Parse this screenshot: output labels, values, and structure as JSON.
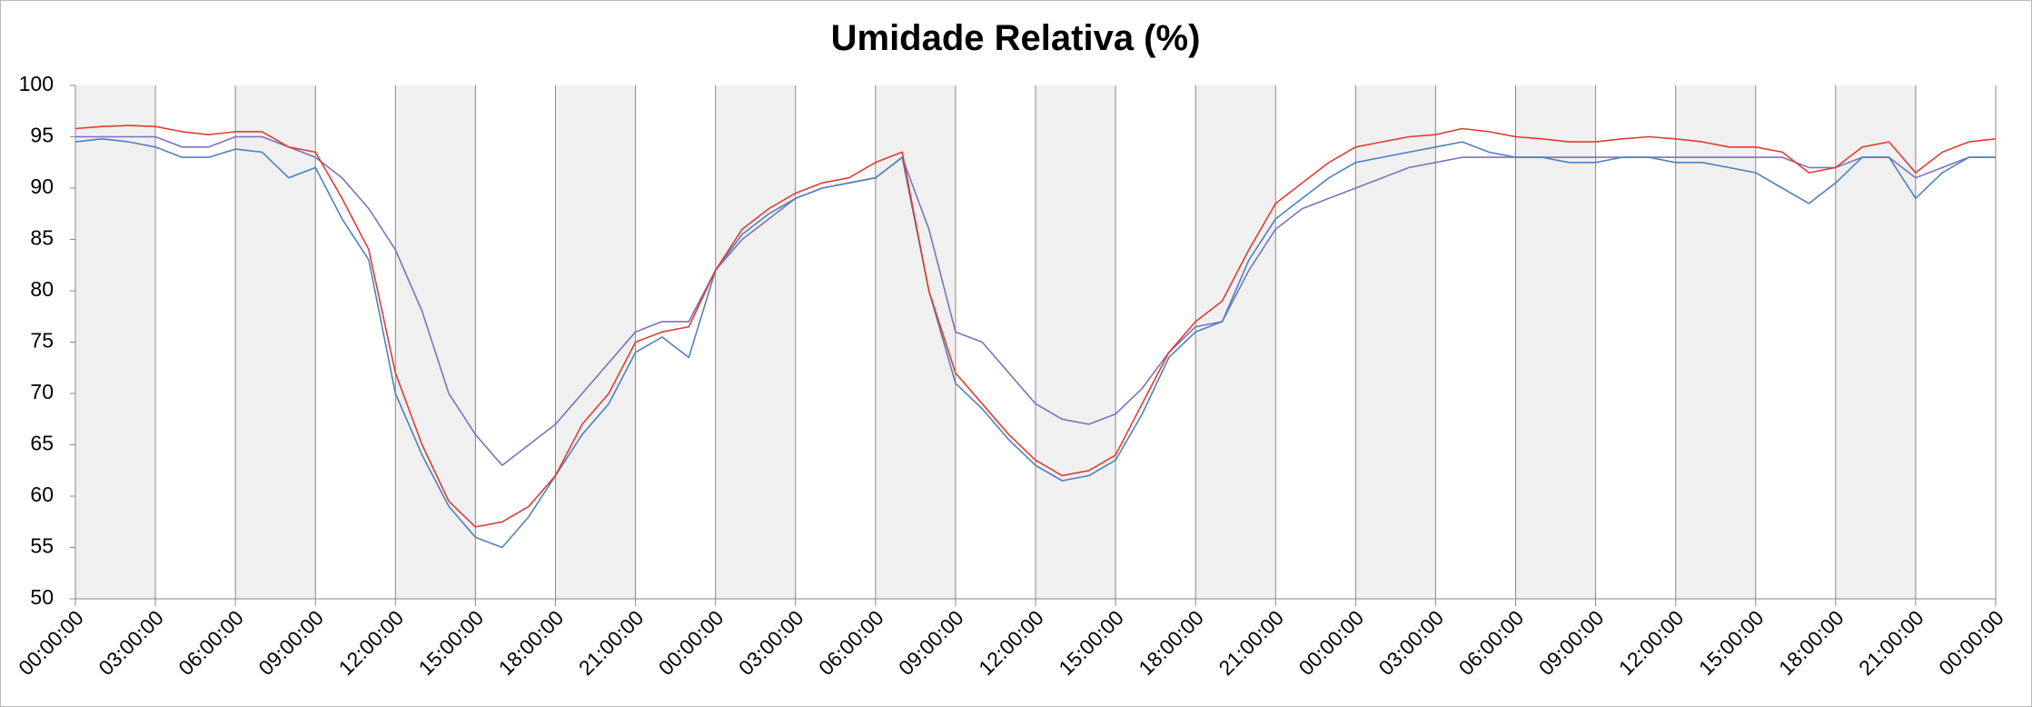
{
  "chart_data": {
    "type": "line",
    "title": "Umidade Relativa (%)",
    "categories": [
      "00:00:00",
      null,
      null,
      "03:00:00",
      null,
      null,
      "06:00:00",
      null,
      null,
      "09:00:00",
      null,
      null,
      "12:00:00",
      null,
      null,
      "15:00:00",
      null,
      null,
      "18:00:00",
      null,
      null,
      "21:00:00",
      null,
      null,
      "00:00:00",
      null,
      null,
      "03:00:00",
      null,
      null,
      "06:00:00",
      null,
      null,
      "09:00:00",
      null,
      null,
      "12:00:00",
      null,
      null,
      "15:00:00",
      null,
      null,
      "18:00:00",
      null,
      null,
      "21:00:00",
      null,
      null,
      "00:00:00",
      null,
      null,
      "03:00:00",
      null,
      null,
      "06:00:00",
      null,
      null,
      "09:00:00",
      null,
      null,
      "12:00:00",
      null,
      null,
      "15:00:00",
      null,
      null,
      "18:00:00",
      null,
      null,
      "21:00:00",
      null,
      null,
      "00:00:00"
    ],
    "series": [
      {
        "color": "#e03c31",
        "values": [
          95.8,
          96,
          96.1,
          96,
          95.5,
          95.2,
          95.5,
          95.5,
          94,
          93.5,
          89,
          84,
          72,
          65,
          59.5,
          57,
          57.5,
          59,
          62,
          67,
          70,
          75,
          76,
          76.5,
          82,
          86,
          88,
          89.5,
          90.5,
          91,
          92.5,
          93.5,
          80,
          72,
          69,
          66,
          63.5,
          62,
          62.5,
          64,
          69,
          74,
          77,
          79,
          84,
          88.5,
          90.5,
          92.5,
          94,
          94.5,
          95,
          95.2,
          95.8,
          95.5,
          95,
          94.8,
          94.5,
          94.5,
          94.8,
          95,
          94.8,
          94.5,
          94,
          94,
          93.5,
          91.5,
          92,
          94,
          94.5,
          91.5,
          93.5,
          94.5,
          94.8
        ]
      },
      {
        "color": "#4f81bd",
        "values": [
          94.5,
          94.8,
          94.5,
          94,
          93,
          93,
          93.8,
          93.5,
          91,
          92,
          87,
          83,
          70,
          64,
          59,
          56,
          55,
          58,
          62,
          66,
          69,
          74,
          75.5,
          73.5,
          82,
          85.5,
          87.5,
          89,
          90,
          90.5,
          91,
          93,
          80,
          71,
          68.5,
          65.5,
          63,
          61.5,
          62,
          63.5,
          68,
          73.5,
          76,
          77,
          83,
          87,
          89,
          91,
          92.5,
          93,
          93.5,
          94,
          94.5,
          93.5,
          93,
          93,
          92.5,
          92.5,
          93,
          93,
          92.5,
          92.5,
          92,
          91.5,
          90,
          88.5,
          90.5,
          93,
          93,
          89,
          91.5,
          93,
          93
        ]
      },
      {
        "color": "#7b72c0",
        "values": [
          95,
          95,
          95,
          95,
          94,
          94,
          95,
          95,
          94,
          93,
          91,
          88,
          84,
          78,
          70,
          66,
          63,
          65,
          67,
          70,
          73,
          76,
          77,
          77,
          82,
          85,
          87,
          89,
          90,
          90.5,
          91,
          93,
          86,
          76,
          75,
          72,
          69,
          67.5,
          67,
          68,
          70.5,
          74,
          76.5,
          77,
          82,
          86,
          88,
          89,
          90,
          91,
          92,
          92.5,
          93,
          93,
          93,
          93,
          93,
          93,
          93,
          93,
          93,
          93,
          93,
          93,
          93,
          92,
          92,
          93,
          93,
          91,
          92,
          93,
          93
        ]
      }
    ],
    "ylim": [
      50,
      100
    ],
    "yticks": [
      50,
      55,
      60,
      65,
      70,
      75,
      80,
      85,
      90,
      95,
      100
    ]
  }
}
